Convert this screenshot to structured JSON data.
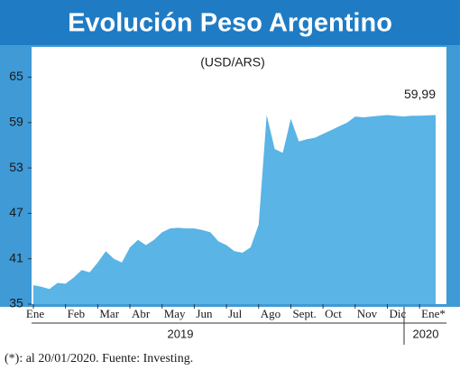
{
  "chart_data": {
    "type": "area",
    "title": "Evolución Peso Argentino",
    "subtitle": "(USD/ARS)",
    "categories": [
      "Ene",
      null,
      null,
      null,
      "Feb",
      null,
      null,
      null,
      "Mar",
      null,
      null,
      null,
      "Abr",
      null,
      null,
      null,
      "May",
      null,
      null,
      null,
      "Jun",
      null,
      null,
      null,
      "Jul",
      null,
      null,
      null,
      "Ago",
      null,
      null,
      null,
      "Sept.",
      null,
      null,
      null,
      "Oct",
      null,
      null,
      null,
      "Nov",
      null,
      null,
      null,
      "Dic",
      null,
      null,
      null,
      "Ene*",
      null,
      null
    ],
    "values": [
      37.5,
      37.3,
      37.0,
      37.8,
      37.7,
      38.5,
      39.5,
      39.2,
      40.5,
      42.0,
      41.0,
      40.5,
      42.5,
      43.5,
      42.8,
      43.5,
      44.5,
      45.0,
      45.1,
      45.0,
      45.0,
      44.8,
      44.5,
      43.3,
      42.8,
      42.0,
      41.8,
      42.5,
      45.5,
      60.0,
      55.5,
      55.0,
      59.5,
      56.5,
      56.8,
      57.0,
      57.5,
      58.0,
      58.5,
      59.0,
      59.8,
      59.7,
      59.8,
      59.9,
      60.0,
      59.9,
      59.8,
      59.9,
      59.9,
      59.95,
      59.99
    ],
    "value_labels": [
      null,
      null,
      null,
      null,
      null,
      null,
      null,
      null,
      null,
      null,
      null,
      null,
      null,
      null,
      null,
      null,
      null,
      null,
      null,
      null,
      null,
      null,
      null,
      null,
      null,
      null,
      null,
      null,
      null,
      null,
      null,
      null,
      null,
      null,
      null,
      null,
      null,
      null,
      null,
      null,
      null,
      null,
      null,
      null,
      null,
      null,
      null,
      null,
      null,
      null,
      "59,99"
    ],
    "color": "#5ab4e5",
    "year_labels": [
      "2019",
      "2020"
    ],
    "ylim": [
      35,
      69
    ],
    "yticks": [
      35,
      41,
      47,
      53,
      59,
      65
    ],
    "note": "(*): al 20/01/2020. Fuente: Investing."
  }
}
